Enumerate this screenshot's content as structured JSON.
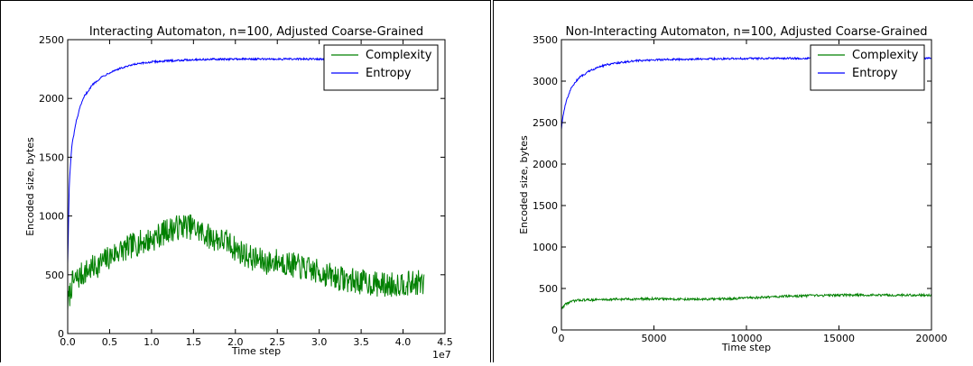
{
  "chart_data": [
    {
      "type": "line",
      "title": "Interacting Automaton, n=100, Adjusted Coarse-Grained",
      "xlabel": "Time step",
      "ylabel": "Encoded size, bytes",
      "x_scale_label": "1e7",
      "xlim": [
        0,
        4.5
      ],
      "ylim": [
        0,
        2500
      ],
      "x_ticks": [
        0.0,
        0.5,
        1.0,
        1.5,
        2.0,
        2.5,
        3.0,
        3.5,
        4.0,
        4.5
      ],
      "x_tick_labels": [
        "0.0",
        "0.5",
        "1.0",
        "1.5",
        "2.0",
        "2.5",
        "3.0",
        "3.5",
        "4.0",
        "4.5"
      ],
      "y_ticks": [
        0,
        500,
        1000,
        1500,
        2000,
        2500
      ],
      "y_tick_labels": [
        "0",
        "500",
        "1000",
        "1500",
        "2000",
        "2500"
      ],
      "grid": false,
      "legend": "top-right",
      "series": [
        {
          "name": "Complexity",
          "color": "#008000",
          "x": [
            0.0,
            0.05,
            0.1,
            0.2,
            0.3,
            0.4,
            0.5,
            0.6,
            0.7,
            0.8,
            0.9,
            1.0,
            1.1,
            1.2,
            1.3,
            1.4,
            1.5,
            1.6,
            1.7,
            1.8,
            1.9,
            2.0,
            2.1,
            2.2,
            2.3,
            2.4,
            2.5,
            2.6,
            2.7,
            2.8,
            2.9,
            3.0,
            3.1,
            3.2,
            3.3,
            3.4,
            3.5,
            3.6,
            3.7,
            3.8,
            3.9,
            4.0,
            4.1,
            4.2,
            4.25
          ],
          "values": [
            250,
            420,
            460,
            520,
            560,
            600,
            650,
            700,
            720,
            760,
            780,
            800,
            840,
            880,
            900,
            920,
            900,
            860,
            820,
            800,
            780,
            720,
            680,
            640,
            620,
            600,
            620,
            600,
            580,
            560,
            540,
            520,
            500,
            480,
            460,
            450,
            440,
            430,
            420,
            410,
            420,
            430,
            420,
            440,
            400
          ]
        },
        {
          "name": "Entropy",
          "color": "#0000ff",
          "x": [
            0.0,
            0.02,
            0.05,
            0.1,
            0.15,
            0.2,
            0.3,
            0.4,
            0.5,
            0.6,
            0.8,
            1.0,
            1.2,
            1.5,
            2.0,
            2.5,
            3.0,
            3.5,
            4.0,
            4.25
          ],
          "values": [
            600,
            1300,
            1600,
            1800,
            1930,
            2020,
            2120,
            2180,
            2220,
            2250,
            2290,
            2310,
            2320,
            2330,
            2335,
            2335,
            2335,
            2335,
            2335,
            2335
          ]
        }
      ]
    },
    {
      "type": "line",
      "title": "Non-Interacting Automaton, n=100, Adjusted Coarse-Grained",
      "xlabel": "Time step",
      "ylabel": "Encoded size, bytes",
      "xlim": [
        0,
        20000
      ],
      "ylim": [
        0,
        3500
      ],
      "x_ticks": [
        0,
        5000,
        10000,
        15000,
        20000
      ],
      "x_tick_labels": [
        "0",
        "5000",
        "10000",
        "15000",
        "20000"
      ],
      "y_ticks": [
        0,
        500,
        1000,
        1500,
        2000,
        2500,
        3000,
        3500
      ],
      "y_tick_labels": [
        "0",
        "500",
        "1000",
        "1500",
        "2000",
        "2500",
        "3000",
        "3500"
      ],
      "grid": false,
      "legend": "top-right",
      "series": [
        {
          "name": "Complexity",
          "color": "#008000",
          "x": [
            0,
            200,
            500,
            800,
            1000,
            2000,
            3000,
            4000,
            5000,
            6000,
            7000,
            8000,
            9000,
            10000,
            11000,
            12000,
            13000,
            14000,
            15000,
            16000,
            17000,
            18000,
            19000,
            20000
          ],
          "values": [
            250,
            310,
            340,
            355,
            360,
            365,
            370,
            372,
            375,
            372,
            370,
            370,
            375,
            385,
            395,
            405,
            410,
            415,
            420,
            420,
            420,
            420,
            420,
            420
          ]
        },
        {
          "name": "Entropy",
          "color": "#0000ff",
          "x": [
            0,
            100,
            250,
            500,
            750,
            1000,
            1500,
            2000,
            2500,
            3000,
            4000,
            5000,
            6000,
            8000,
            10000,
            12000,
            14000,
            16000,
            18000,
            20000
          ],
          "values": [
            2420,
            2600,
            2750,
            2900,
            2990,
            3050,
            3120,
            3170,
            3200,
            3220,
            3245,
            3255,
            3262,
            3268,
            3272,
            3275,
            3275,
            3276,
            3276,
            3276
          ]
        }
      ]
    }
  ]
}
